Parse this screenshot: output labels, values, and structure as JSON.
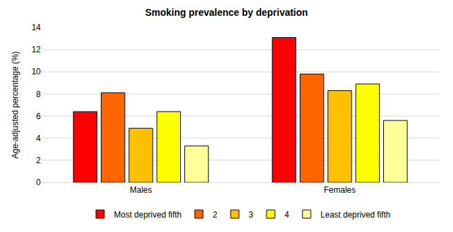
{
  "chart_data": {
    "type": "bar",
    "title": "Smoking prevalence by deprivation",
    "y_label": "Age-adjusted percentage (%)",
    "categories": [
      "Males",
      "Females"
    ],
    "series": [
      {
        "name": "Most deprived fifth",
        "color": "#ff0000",
        "values": [
          6.4,
          13.1
        ]
      },
      {
        "name": "2",
        "color": "#ff6600",
        "values": [
          8.1,
          9.8
        ]
      },
      {
        "name": "3",
        "color": "#ffc000",
        "values": [
          4.9,
          8.3
        ]
      },
      {
        "name": "4",
        "color": "#ffff00",
        "values": [
          6.4,
          8.9
        ]
      },
      {
        "name": "Least deprived fifth",
        "color": "#ffff99",
        "values": [
          3.3,
          5.6
        ]
      }
    ],
    "ylim": [
      0,
      14
    ],
    "yticks": [
      0,
      2,
      4,
      6,
      8,
      10,
      12,
      14
    ],
    "grid": true,
    "legend": "bottom"
  }
}
